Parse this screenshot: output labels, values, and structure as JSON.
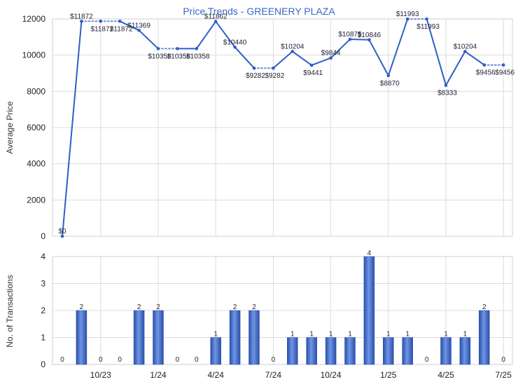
{
  "chart_data": [
    {
      "type": "line",
      "title": "Price Trends - GREENERY PLAZA",
      "xlabel": "",
      "ylabel": "Average Price",
      "ylim": [
        0,
        12000
      ],
      "yticks": [
        0,
        2000,
        4000,
        6000,
        8000,
        10000,
        12000
      ],
      "grid": true,
      "x": [
        "2023-08",
        "2023-09",
        "2023-10",
        "2023-11",
        "2023-12",
        "2024-01",
        "2024-02",
        "2024-03",
        "2024-04",
        "2024-05",
        "2024-06",
        "2024-07",
        "2024-08",
        "2024-09",
        "2024-10",
        "2024-11",
        "2024-12",
        "2025-01",
        "2025-02",
        "2025-03",
        "2025-04",
        "2025-05",
        "2025-06",
        "2025-07"
      ],
      "values": [
        0,
        11872,
        11872,
        11872,
        11369,
        10358,
        10358,
        10358,
        11862,
        10440,
        9282,
        9282,
        10204,
        9441,
        9844,
        10875,
        10846,
        8870,
        11993,
        11993,
        8333,
        10204,
        9456,
        9456
      ],
      "estimated": [
        false,
        false,
        true,
        true,
        false,
        false,
        true,
        false,
        false,
        false,
        false,
        true,
        false,
        false,
        false,
        false,
        false,
        false,
        false,
        true,
        false,
        false,
        false,
        true
      ],
      "data_labels": [
        "$0",
        "$11872",
        "$11872",
        "$11872",
        "$11369",
        "$10358",
        "$10358",
        "$10358",
        "$11862",
        "$10440",
        "$9282",
        "$9282",
        "$10204",
        "$9441",
        "$9844",
        "$10875",
        "$10846",
        "$8870",
        "$11993",
        "$11993",
        "$8333",
        "$10204",
        "$9456",
        "$9456"
      ],
      "line_color": "#2f5fc4",
      "estimated_color": "#6f8fd6"
    },
    {
      "type": "bar",
      "title": "",
      "xlabel": "",
      "ylabel": "No. of Transactions",
      "ylim": [
        0,
        4
      ],
      "yticks": [
        0,
        1,
        2,
        3,
        4
      ],
      "grid": true,
      "x": [
        "2023-08",
        "2023-09",
        "2023-10",
        "2023-11",
        "2023-12",
        "2024-01",
        "2024-02",
        "2024-03",
        "2024-04",
        "2024-05",
        "2024-06",
        "2024-07",
        "2024-08",
        "2024-09",
        "2024-10",
        "2024-11",
        "2024-12",
        "2025-01",
        "2025-02",
        "2025-03",
        "2025-04",
        "2025-05",
        "2025-06",
        "2025-07"
      ],
      "values": [
        0,
        2,
        0,
        0,
        2,
        2,
        0,
        0,
        1,
        2,
        2,
        0,
        1,
        1,
        1,
        1,
        4,
        1,
        1,
        0,
        1,
        1,
        2,
        0
      ],
      "x_tick_labels": [
        {
          "at": "2023-10",
          "label": "10/23"
        },
        {
          "at": "2024-01",
          "label": "1/24"
        },
        {
          "at": "2024-04",
          "label": "4/24"
        },
        {
          "at": "2024-07",
          "label": "7/24"
        },
        {
          "at": "2024-10",
          "label": "10/24"
        },
        {
          "at": "2025-01",
          "label": "1/25"
        },
        {
          "at": "2025-04",
          "label": "4/25"
        },
        {
          "at": "2025-07",
          "label": "7/25"
        }
      ],
      "bar_color": "#2f5fc4"
    }
  ]
}
